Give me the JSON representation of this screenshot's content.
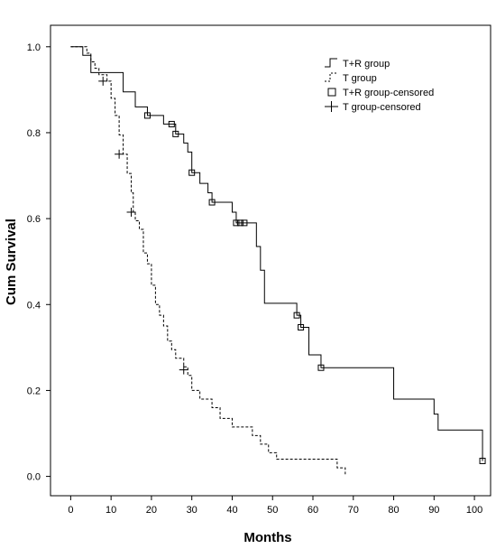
{
  "chart_data": {
    "type": "line",
    "step": true,
    "title": "",
    "xlabel": "Months",
    "ylabel": "Cum Survival",
    "xlim": [
      -5,
      104
    ],
    "ylim": [
      -0.045,
      1.05
    ],
    "xticks": [
      0,
      10,
      20,
      30,
      40,
      50,
      60,
      70,
      80,
      90,
      100
    ],
    "yticks": [
      0.0,
      0.2,
      0.4,
      0.6,
      0.8,
      1.0
    ],
    "ytick_labels": [
      "0.0",
      "0.2",
      "0.4",
      "0.6",
      "0.8",
      "1.0"
    ],
    "grid": false,
    "legend_position": "top-right",
    "legend": [
      "T+R group",
      "T group",
      "T+R group-censored",
      "T group-censored"
    ],
    "series": [
      {
        "name": "T+R group",
        "style": "solid",
        "color": "#000000",
        "points": [
          [
            0,
            1.0
          ],
          [
            3,
            1.0
          ],
          [
            3,
            0.98
          ],
          [
            5,
            0.98
          ],
          [
            5,
            0.94
          ],
          [
            13,
            0.94
          ],
          [
            13,
            0.895
          ],
          [
            16,
            0.895
          ],
          [
            16,
            0.86
          ],
          [
            19,
            0.86
          ],
          [
            19,
            0.84
          ],
          [
            23,
            0.84
          ],
          [
            23,
            0.82
          ],
          [
            26,
            0.82
          ],
          [
            26,
            0.797
          ],
          [
            28,
            0.797
          ],
          [
            28,
            0.776
          ],
          [
            29,
            0.776
          ],
          [
            29,
            0.755
          ],
          [
            30,
            0.755
          ],
          [
            30,
            0.707
          ],
          [
            32,
            0.707
          ],
          [
            32,
            0.682
          ],
          [
            34,
            0.682
          ],
          [
            34,
            0.66
          ],
          [
            35,
            0.66
          ],
          [
            35,
            0.638
          ],
          [
            40,
            0.638
          ],
          [
            40,
            0.615
          ],
          [
            41,
            0.615
          ],
          [
            41,
            0.59
          ],
          [
            46,
            0.59
          ],
          [
            46,
            0.535
          ],
          [
            47,
            0.535
          ],
          [
            47,
            0.48
          ],
          [
            48,
            0.48
          ],
          [
            48,
            0.403
          ],
          [
            56,
            0.403
          ],
          [
            56,
            0.375
          ],
          [
            57,
            0.375
          ],
          [
            57,
            0.347
          ],
          [
            59,
            0.347
          ],
          [
            59,
            0.283
          ],
          [
            62,
            0.283
          ],
          [
            62,
            0.253
          ],
          [
            80,
            0.253
          ],
          [
            80,
            0.18
          ],
          [
            90,
            0.18
          ],
          [
            90,
            0.145
          ],
          [
            91,
            0.145
          ],
          [
            91,
            0.108
          ],
          [
            102,
            0.108
          ],
          [
            102,
            0.036
          ]
        ],
        "censored": [
          [
            19,
            0.84
          ],
          [
            25,
            0.82
          ],
          [
            26,
            0.797
          ],
          [
            30,
            0.707
          ],
          [
            35,
            0.638
          ],
          [
            41,
            0.59
          ],
          [
            42,
            0.59
          ],
          [
            43,
            0.59
          ],
          [
            56,
            0.375
          ],
          [
            57,
            0.347
          ],
          [
            62,
            0.253
          ],
          [
            102,
            0.036
          ]
        ]
      },
      {
        "name": "T group",
        "style": "dashed",
        "color": "#000000",
        "points": [
          [
            0,
            1.0
          ],
          [
            4,
            1.0
          ],
          [
            4,
            0.985
          ],
          [
            5,
            0.985
          ],
          [
            5,
            0.965
          ],
          [
            6,
            0.965
          ],
          [
            6,
            0.95
          ],
          [
            7,
            0.95
          ],
          [
            7,
            0.935
          ],
          [
            9,
            0.935
          ],
          [
            9,
            0.92
          ],
          [
            10,
            0.92
          ],
          [
            10,
            0.88
          ],
          [
            11,
            0.88
          ],
          [
            11,
            0.84
          ],
          [
            12,
            0.84
          ],
          [
            12,
            0.795
          ],
          [
            13,
            0.795
          ],
          [
            13,
            0.75
          ],
          [
            14,
            0.75
          ],
          [
            14,
            0.705
          ],
          [
            15,
            0.705
          ],
          [
            15,
            0.66
          ],
          [
            15.5,
            0.66
          ],
          [
            15.5,
            0.615
          ],
          [
            16,
            0.615
          ],
          [
            16,
            0.595
          ],
          [
            17,
            0.595
          ],
          [
            17,
            0.575
          ],
          [
            18,
            0.575
          ],
          [
            18,
            0.52
          ],
          [
            19,
            0.52
          ],
          [
            19,
            0.495
          ],
          [
            20,
            0.495
          ],
          [
            20,
            0.445
          ],
          [
            21,
            0.445
          ],
          [
            21,
            0.4
          ],
          [
            22,
            0.4
          ],
          [
            22,
            0.375
          ],
          [
            23,
            0.375
          ],
          [
            23,
            0.35
          ],
          [
            24,
            0.35
          ],
          [
            24,
            0.315
          ],
          [
            25,
            0.315
          ],
          [
            25,
            0.295
          ],
          [
            26,
            0.295
          ],
          [
            26,
            0.275
          ],
          [
            28,
            0.275
          ],
          [
            28,
            0.255
          ],
          [
            29,
            0.255
          ],
          [
            29,
            0.235
          ],
          [
            30,
            0.235
          ],
          [
            30,
            0.2
          ],
          [
            32,
            0.2
          ],
          [
            32,
            0.18
          ],
          [
            35,
            0.18
          ],
          [
            35,
            0.16
          ],
          [
            37,
            0.16
          ],
          [
            37,
            0.135
          ],
          [
            40,
            0.135
          ],
          [
            40,
            0.115
          ],
          [
            45,
            0.115
          ],
          [
            45,
            0.095
          ],
          [
            47,
            0.095
          ],
          [
            47,
            0.075
          ],
          [
            49,
            0.075
          ],
          [
            49,
            0.055
          ],
          [
            51,
            0.055
          ],
          [
            51,
            0.04
          ],
          [
            66,
            0.04
          ],
          [
            66,
            0.02
          ],
          [
            68,
            0.02
          ],
          [
            68,
            0.005
          ]
        ],
        "censored": [
          [
            8,
            0.92
          ],
          [
            12,
            0.75
          ],
          [
            15,
            0.615
          ],
          [
            28,
            0.248
          ]
        ]
      }
    ]
  }
}
